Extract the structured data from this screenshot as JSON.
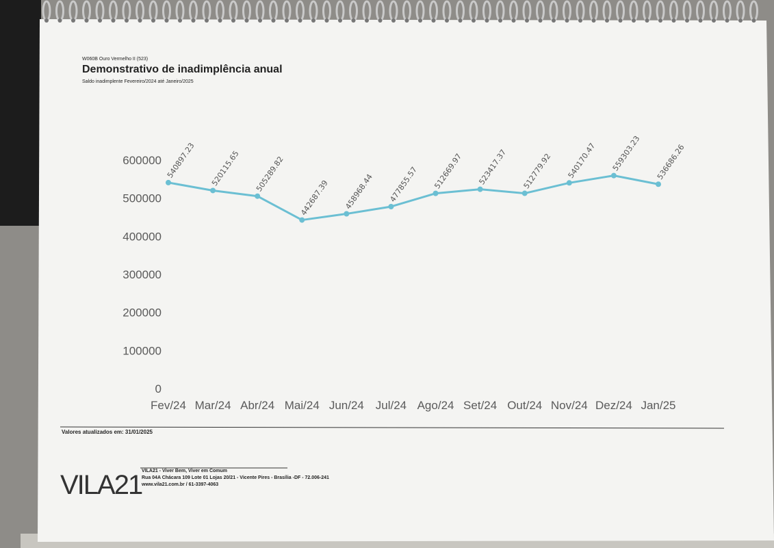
{
  "header": {
    "code": "W060B Ouro Vermelho II (523)"
  },
  "chart_data": {
    "type": "line",
    "title": "Demonstrativo de inadimplência anual",
    "subtitle": "Saldo inadimplente Fevereiro/2024 até Janeiro/2025",
    "categories": [
      "Fev/24",
      "Mar/24",
      "Abr/24",
      "Mai/24",
      "Jun/24",
      "Jul/24",
      "Ago/24",
      "Set/24",
      "Out/24",
      "Nov/24",
      "Dez/24",
      "Jan/25"
    ],
    "values": [
      540897.23,
      520115.65,
      505289.82,
      442687.39,
      458968.44,
      477855.57,
      512669.97,
      523417.37,
      512779.92,
      540170.47,
      559303.23,
      536686.26
    ],
    "color": "#6bbfd3",
    "ylim": [
      0,
      600000
    ],
    "yticks": [
      0,
      100000,
      200000,
      300000,
      400000,
      500000,
      600000
    ],
    "grid": false
  },
  "footer": {
    "updated": "Valores atualizados em: 31/01/2025",
    "logo": "VILA21",
    "company": "VILA21 - Viver Bem, Viver em Comum",
    "address": "Rua 04A Chácara 109 Lote 01 Lojas 20/21 - Vicente Pires - Brasília -DF - 72.006-241",
    "contact": "www.vila21.com.br / 61-3397-4063"
  }
}
